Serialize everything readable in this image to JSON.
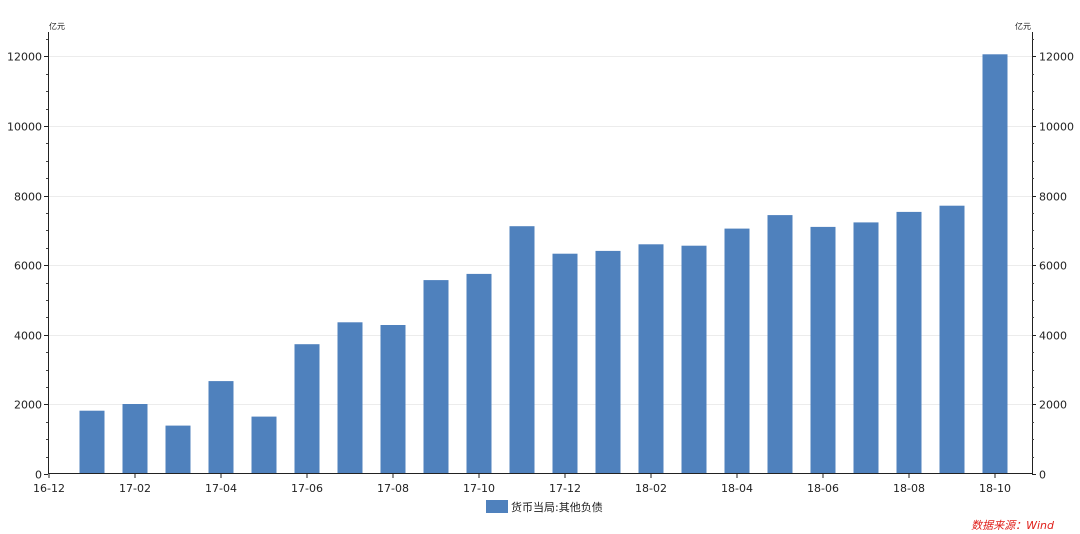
{
  "chart_data": {
    "type": "bar",
    "y_unit": "亿元",
    "ylim": [
      0,
      12700
    ],
    "yticks": [
      0,
      2000,
      4000,
      6000,
      8000,
      10000,
      12000
    ],
    "x_tick_labels": [
      "16-12",
      "17-02",
      "17-04",
      "17-06",
      "17-08",
      "17-10",
      "17-12",
      "18-02",
      "18-04",
      "18-06",
      "18-08",
      "18-10"
    ],
    "grid": true,
    "legend_position": "bottom-center",
    "series": [
      {
        "name": "货币当局:其他负债",
        "color": "#4f81bd",
        "x": [
          "17-01",
          "17-02",
          "17-03",
          "17-04",
          "17-05",
          "17-06",
          "17-07",
          "17-08",
          "17-09",
          "17-10",
          "17-11",
          "17-12",
          "18-01",
          "18-02",
          "18-03",
          "18-04",
          "18-05",
          "18-06",
          "18-07",
          "18-08",
          "18-09",
          "18-10"
        ],
        "values": [
          1820,
          2010,
          1390,
          2670,
          1650,
          3730,
          4360,
          4280,
          5570,
          5750,
          7120,
          6330,
          6410,
          6600,
          6560,
          7050,
          7440,
          7100,
          7230,
          7530,
          7710,
          12060
        ]
      }
    ],
    "source_note": "数据来源：Wind"
  }
}
